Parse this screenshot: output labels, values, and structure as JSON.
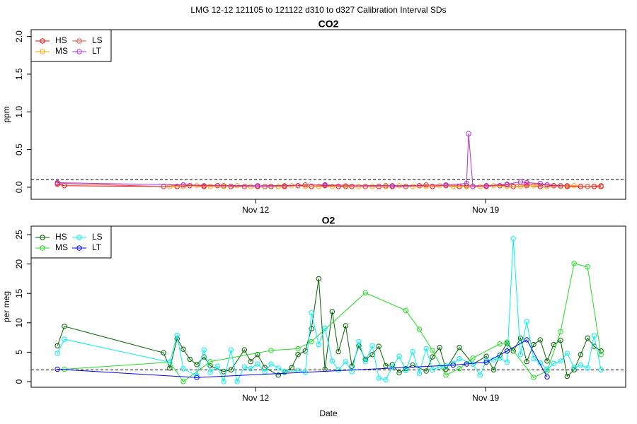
{
  "title": "LMG   12-12    121105 to 121122    d310 to d327   Calibration Interval SDs",
  "chart_data": [
    {
      "type": "line",
      "title": "CO2",
      "y_label": "ppm",
      "xlim": [
        5.17,
        23.26
      ],
      "xticks": [
        {
          "value": 12,
          "label": "Nov 12"
        },
        {
          "value": 19,
          "label": "Nov 19"
        }
      ],
      "ylim": [
        -0.16,
        2.09
      ],
      "yticks": [
        {
          "value": 0,
          "label": "0.0"
        },
        {
          "value": 0.5,
          "label": "0.5"
        },
        {
          "value": 1,
          "label": "1.0"
        },
        {
          "value": 1.5,
          "label": "1.5"
        },
        {
          "value": 2,
          "label": "2.0"
        }
      ],
      "reference_line": 0.1,
      "legend": "top-left",
      "series": [
        {
          "name": "HS",
          "color": "#ff0000",
          "x": [
            5.97,
            6.18,
            9.2,
            9.61,
            10.0,
            10.43,
            10.84,
            11.25,
            11.66,
            12.06,
            12.47,
            12.88,
            13.29,
            13.7,
            14.11,
            14.52,
            14.93,
            15.34,
            15.75,
            16.16,
            16.57,
            16.98,
            17.38,
            17.79,
            18.2,
            18.61,
            19.02,
            19.43,
            19.84,
            20.25,
            20.66,
            21.07,
            21.48,
            21.89,
            22.3,
            22.51
          ],
          "values": [
            0.04,
            0.02,
            0.01,
            0.01,
            0.02,
            0.01,
            0.02,
            0.01,
            0.01,
            0.01,
            0.01,
            0.01,
            0.02,
            0.01,
            0.02,
            0.01,
            0.01,
            0.01,
            0.01,
            0.01,
            0.01,
            0.02,
            0.01,
            0.02,
            0.01,
            0.01,
            0.01,
            0.02,
            0.01,
            0.02,
            0.01,
            0.02,
            0.01,
            0.01,
            0.01,
            0.01
          ]
        },
        {
          "name": "MS",
          "color": "#ffa500",
          "x": [
            9.39,
            9.8,
            10.21,
            10.62,
            11.03,
            11.44,
            11.85,
            12.28,
            12.69,
            13.1,
            13.51,
            13.92,
            14.33,
            14.74,
            15.14,
            15.55,
            15.96,
            16.37,
            16.78,
            17.19,
            17.6,
            18.01,
            18.42,
            18.83,
            19.24,
            19.65,
            20.06,
            20.46,
            20.87,
            21.28,
            21.69,
            22.1
          ],
          "values": [
            0.01,
            0.01,
            0.02,
            0.01,
            0.01,
            0.02,
            0.01,
            0.01,
            0.01,
            0.02,
            0.01,
            0.01,
            0.01,
            0.02,
            0.01,
            0.01,
            0.01,
            0.02,
            0.01,
            0.01,
            0.02,
            0.01,
            0.01,
            0.01,
            0.02,
            0.01,
            0.01,
            0.02,
            0.01,
            0.01,
            0.02,
            0.01
          ]
        },
        {
          "name": "LS",
          "color": "#d9503f",
          "x": [
            5.97,
            9.2,
            9.8,
            10.43,
            11.03,
            11.66,
            12.28,
            12.88,
            13.51,
            14.11,
            14.74,
            15.34,
            15.96,
            16.57,
            17.19,
            17.79,
            18.42,
            19.02,
            19.65,
            20.25,
            20.87,
            21.48,
            22.1,
            22.51
          ],
          "values": [
            0.05,
            0.01,
            0.03,
            0.02,
            0.02,
            0.01,
            0.01,
            0.02,
            0.03,
            0.03,
            0.01,
            0.01,
            0.02,
            0.01,
            0.03,
            0.02,
            0.02,
            0.02,
            0.03,
            0.04,
            0.03,
            0.02,
            0.01,
            0.02
          ]
        },
        {
          "name": "LT",
          "color": "#b030e0",
          "x": [
            5.97,
            9.8,
            12.06,
            14.11,
            16.16,
            17.79,
            18.42,
            18.48,
            18.61,
            19.02,
            19.65,
            20.06,
            20.25,
            20.66,
            20.87,
            21.28
          ],
          "values": [
            0.06,
            0.03,
            0.02,
            0.03,
            0.02,
            0.03,
            0.05,
            0.71,
            0.01,
            0.02,
            0.04,
            0.07,
            0.06,
            0.05,
            0.03,
            0.02
          ]
        }
      ]
    },
    {
      "type": "line",
      "title": "O2",
      "y_label": "per meg",
      "x_label": "Date",
      "xlim": [
        5.17,
        23.26
      ],
      "xticks": [
        {
          "value": 12,
          "label": "Nov 12"
        },
        {
          "value": 19,
          "label": "Nov 19"
        }
      ],
      "ylim": [
        -0.96,
        26.44
      ],
      "yticks": [
        0,
        5,
        10,
        15,
        20,
        25
      ],
      "reference_line": 2,
      "legend": "top-left",
      "series": [
        {
          "name": "HS",
          "color": "#006400",
          "x": [
            5.97,
            6.18,
            9.2,
            9.39,
            9.61,
            9.8,
            10.0,
            10.21,
            10.43,
            10.62,
            11.03,
            11.25,
            11.66,
            11.85,
            12.06,
            12.28,
            12.69,
            12.88,
            13.1,
            13.29,
            13.51,
            13.7,
            13.92,
            14.11,
            14.33,
            14.52,
            14.74,
            14.93,
            15.14,
            15.34,
            15.55,
            15.75,
            15.96,
            16.16,
            16.37,
            16.57,
            16.78,
            17.19,
            17.38,
            17.6,
            17.79,
            18.2,
            18.61,
            19.02,
            19.24,
            19.43,
            19.65,
            19.84,
            20.06,
            20.25,
            20.46,
            20.66,
            20.87,
            21.07,
            21.28,
            21.48,
            21.69,
            21.89,
            22.1,
            22.3,
            22.51
          ],
          "values": [
            6.1,
            9.4,
            4.9,
            2.3,
            7.3,
            5.5,
            3.8,
            2.9,
            4.2,
            2.7,
            1.7,
            2.0,
            5.4,
            3.4,
            4.6,
            2.4,
            1.1,
            1.6,
            2.4,
            4.6,
            5.2,
            9.0,
            17.5,
            2.1,
            11.9,
            5.1,
            9.5,
            2.6,
            6.1,
            3.8,
            4.6,
            6.0,
            2.7,
            2.9,
            1.5,
            2.2,
            2.8,
            1.8,
            4.2,
            5.8,
            2.1,
            5.8,
            3.0,
            4.3,
            2.0,
            4.5,
            6.5,
            5.2,
            7.4,
            3.4,
            6.3,
            7.1,
            3.5,
            6.3,
            7.0,
            0.9,
            2.0,
            4.6,
            7.4,
            6.0,
            5.2
          ]
        },
        {
          "name": "MS",
          "color": "#22dd22",
          "x": [
            6.18,
            9.39,
            9.8,
            10.62,
            12.47,
            13.29,
            13.7,
            15.34,
            16.57,
            16.98,
            17.38,
            17.79,
            18.2,
            18.61,
            19.43,
            19.65,
            20.46,
            20.87,
            21.28,
            21.69,
            22.1,
            22.51
          ],
          "values": [
            2.1,
            3.3,
            0.0,
            3.4,
            5.3,
            5.6,
            6.8,
            15.1,
            12.1,
            8.9,
            5.3,
            1.1,
            2.2,
            4.0,
            6.4,
            6.7,
            0.7,
            1.8,
            8.5,
            20.1,
            19.5,
            4.6
          ]
        },
        {
          "name": "LS",
          "color": "#00f0f0",
          "x": [
            5.97,
            6.18,
            9.39,
            9.61,
            9.8,
            10.21,
            10.43,
            10.62,
            10.84,
            11.03,
            11.25,
            11.44,
            11.66,
            11.85,
            12.06,
            12.28,
            12.47,
            12.69,
            12.88,
            13.29,
            13.51,
            13.7,
            13.92,
            14.11,
            14.33,
            14.52,
            14.74,
            14.93,
            15.14,
            15.34,
            15.55,
            15.75,
            15.96,
            16.16,
            16.37,
            16.57,
            16.78,
            16.98,
            17.19,
            17.38,
            17.6,
            17.79,
            18.01,
            18.2,
            18.61,
            18.83,
            19.02,
            19.24,
            19.43,
            19.65,
            19.84,
            20.06,
            20.25,
            20.46,
            20.66,
            20.87,
            21.07,
            21.28,
            21.48,
            21.69,
            21.89,
            22.1,
            22.3,
            22.51
          ],
          "values": [
            4.8,
            7.2,
            3.3,
            7.9,
            2.2,
            1.0,
            5.4,
            1.6,
            2.6,
            0.0,
            5.4,
            0.0,
            2.5,
            2.2,
            3.0,
            1.7,
            3.0,
            2.3,
            1.7,
            1.9,
            1.6,
            11.7,
            6.3,
            9.1,
            3.5,
            2.0,
            3.4,
            1.7,
            6.8,
            3.4,
            6.1,
            0.6,
            0.3,
            2.5,
            4.3,
            1.9,
            5.1,
            1.4,
            5.6,
            2.0,
            2.5,
            2.7,
            3.1,
            3.9,
            3.0,
            1.1,
            3.6,
            3.7,
            4.0,
            3.3,
            24.3,
            4.6,
            10.2,
            3.9,
            3.2,
            2.1,
            3.1,
            3.5,
            4.8,
            2.4,
            2.8,
            2.3,
            7.8,
            2.0
          ]
        },
        {
          "name": "LT",
          "color": "#0000ff",
          "x": [
            5.97,
            10.21,
            18.01,
            18.42,
            19.02,
            19.65,
            20.25,
            20.87
          ],
          "values": [
            2.1,
            0.7,
            2.8,
            3.0,
            3.3,
            5.2,
            7.1,
            0.8
          ]
        }
      ]
    }
  ]
}
